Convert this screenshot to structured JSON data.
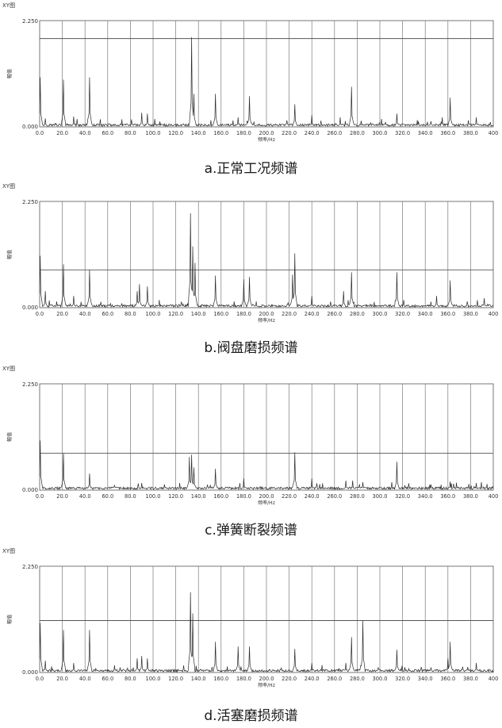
{
  "chart_data": [
    {
      "type": "line",
      "window_title": "XY图",
      "caption": "a.正常工况频谱",
      "xlabel": "频率/Hz",
      "ylabel": "幅值",
      "xlim": [
        0,
        400
      ],
      "ylim": [
        0,
        2.25
      ],
      "ytick_labels": [
        "0.000",
        "2.250"
      ],
      "xtick_labels": [
        "0.0",
        "20.0",
        "40.0",
        "60.0",
        "80.0",
        "100.0",
        "120.0",
        "140.0",
        "160.0",
        "180.0",
        "200.0",
        "220.0",
        "240.0",
        "260.0",
        "280.0",
        "300.0",
        "320.0",
        "340.0",
        "360.0",
        "380.0",
        "400"
      ],
      "grid": true,
      "reference_line": 1.87,
      "peaks": [
        [
          0.5,
          1.05
        ],
        [
          5,
          0.18
        ],
        [
          21,
          1.0
        ],
        [
          30,
          0.22
        ],
        [
          44,
          1.05
        ],
        [
          90,
          0.3
        ],
        [
          95,
          0.28
        ],
        [
          134,
          1.9
        ],
        [
          136,
          0.7
        ],
        [
          155,
          0.7
        ],
        [
          175,
          0.2
        ],
        [
          185,
          0.65
        ],
        [
          225,
          0.48
        ],
        [
          240,
          0.25
        ],
        [
          265,
          0.2
        ],
        [
          275,
          0.85
        ],
        [
          315,
          0.28
        ],
        [
          345,
          0.12
        ],
        [
          355,
          0.2
        ],
        [
          362,
          0.62
        ],
        [
          385,
          0.2
        ]
      ]
    },
    {
      "type": "line",
      "window_title": "XY图",
      "caption": "b.阀盘磨损频谱",
      "xlabel": "频率/Hz",
      "ylabel": "幅值",
      "xlim": [
        0,
        400
      ],
      "ylim": [
        0,
        2.25
      ],
      "ytick_labels": [
        "0.000",
        "2.250"
      ],
      "xtick_labels": [
        "0.0",
        "20.0",
        "40.0",
        "60.0",
        "80.0",
        "100.0",
        "120.0",
        "140.0",
        "160.0",
        "180.0",
        "200.0",
        "220.0",
        "240.0",
        "260.0",
        "280.0",
        "300.0",
        "320.0",
        "340.0",
        "360.0",
        "380.0",
        "400"
      ],
      "grid": true,
      "reference_line": 0.8,
      "peaks": [
        [
          0.5,
          1.1
        ],
        [
          5,
          0.35
        ],
        [
          21,
          0.92
        ],
        [
          30,
          0.25
        ],
        [
          44,
          0.8
        ],
        [
          86,
          0.35
        ],
        [
          88,
          0.5
        ],
        [
          95,
          0.45
        ],
        [
          133,
          2.0
        ],
        [
          135,
          1.3
        ],
        [
          137,
          0.95
        ],
        [
          155,
          0.68
        ],
        [
          180,
          0.6
        ],
        [
          185,
          0.65
        ],
        [
          223,
          0.7
        ],
        [
          225,
          1.15
        ],
        [
          240,
          0.25
        ],
        [
          268,
          0.35
        ],
        [
          275,
          0.75
        ],
        [
          315,
          0.75
        ],
        [
          350,
          0.25
        ],
        [
          362,
          0.58
        ],
        [
          392,
          0.2
        ]
      ]
    },
    {
      "type": "line",
      "window_title": "XY图",
      "caption": "c.弹簧断裂频谱",
      "xlabel": "频率/Hz",
      "ylabel": "幅值",
      "xlim": [
        0,
        400
      ],
      "ylim": [
        0,
        2.25
      ],
      "ytick_labels": [
        "0.000",
        "2.250"
      ],
      "xtick_labels": [
        "0.0",
        "20.0",
        "40.0",
        "60.0",
        "80.0",
        "100.0",
        "120.0",
        "140.0",
        "160.0",
        "180.0",
        "200.0",
        "220.0",
        "240.0",
        "260.0",
        "280.0",
        "300.0",
        "320.0",
        "340.0",
        "360.0",
        "380.0",
        "400"
      ],
      "grid": true,
      "reference_line": 0.78,
      "peaks": [
        [
          0.5,
          1.05
        ],
        [
          21,
          0.78
        ],
        [
          44,
          0.35
        ],
        [
          66,
          0.1
        ],
        [
          90,
          0.15
        ],
        [
          110,
          0.12
        ],
        [
          132,
          0.7
        ],
        [
          134,
          0.75
        ],
        [
          136,
          0.48
        ],
        [
          155,
          0.45
        ],
        [
          180,
          0.25
        ],
        [
          225,
          0.8
        ],
        [
          240,
          0.25
        ],
        [
          270,
          0.2
        ],
        [
          276,
          0.2
        ],
        [
          315,
          0.6
        ],
        [
          345,
          0.12
        ],
        [
          362,
          0.18
        ],
        [
          385,
          0.15
        ]
      ]
    },
    {
      "type": "line",
      "window_title": "XY图",
      "caption": "d.活塞磨损频谱",
      "xlabel": "频率/Hz",
      "ylabel": "幅值",
      "xlim": [
        0,
        400
      ],
      "ylim": [
        0,
        2.25
      ],
      "ytick_labels": [
        "0.000",
        "2.250"
      ],
      "xtick_labels": [
        "0.0",
        "20.0",
        "40.0",
        "60.0",
        "80.0",
        "100.0",
        "120.0",
        "140.0",
        "160.0",
        "180.0",
        "200.0",
        "220.0",
        "240.0",
        "260.0",
        "280.0",
        "300.0",
        "320.0",
        "340.0",
        "360.0",
        "380.0",
        "400"
      ],
      "grid": true,
      "reference_line": 1.1,
      "peaks": [
        [
          0.5,
          1.05
        ],
        [
          5,
          0.25
        ],
        [
          21,
          0.9
        ],
        [
          30,
          0.2
        ],
        [
          44,
          0.9
        ],
        [
          66,
          0.15
        ],
        [
          86,
          0.3
        ],
        [
          90,
          0.35
        ],
        [
          95,
          0.3
        ],
        [
          133,
          1.7
        ],
        [
          135,
          1.25
        ],
        [
          155,
          0.65
        ],
        [
          175,
          0.55
        ],
        [
          185,
          0.55
        ],
        [
          225,
          0.5
        ],
        [
          240,
          0.2
        ],
        [
          270,
          0.2
        ],
        [
          275,
          0.75
        ],
        [
          285,
          1.1
        ],
        [
          315,
          0.48
        ],
        [
          345,
          0.1
        ],
        [
          360,
          0.3
        ],
        [
          362,
          0.65
        ],
        [
          385,
          0.2
        ]
      ]
    }
  ]
}
